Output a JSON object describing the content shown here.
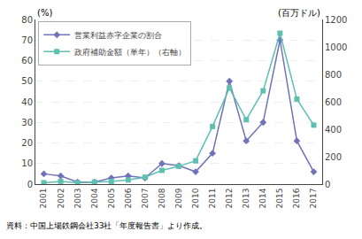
{
  "chart_data": {
    "type": "line",
    "ylabel": "(%)",
    "y2label": "(百万ドル)",
    "annotations": [
      "資料：中国上場鉄鋼会社33社「年度報告書」より作成。"
    ],
    "x": [
      2001,
      2002,
      2003,
      2004,
      2005,
      2006,
      2007,
      2008,
      2009,
      2010,
      2011,
      2012,
      2013,
      2014,
      2015,
      2016,
      2017
    ],
    "series": [
      {
        "name": "営業利益赤字企業の割合",
        "color": "#7272b8",
        "marker": "diamond",
        "values": [
          5,
          4,
          1,
          1,
          3,
          4,
          3,
          10,
          9,
          6,
          15,
          50,
          21,
          30,
          70,
          21,
          6
        ]
      },
      {
        "name": "政府補助金額（単年）（右軸）",
        "color": "#5fbfb0",
        "marker": "square",
        "axis": "y2",
        "values": [
          10,
          20,
          10,
          15,
          20,
          30,
          50,
          100,
          130,
          170,
          420,
          700,
          470,
          680,
          1100,
          620,
          430
        ]
      }
    ],
    "xlim": [
      2000.5,
      2017.5
    ],
    "xticks": [
      2001,
      2002,
      2003,
      2004,
      2005,
      2006,
      2007,
      2008,
      2009,
      2010,
      2011,
      2012,
      2013,
      2014,
      2015,
      2016,
      2017
    ],
    "ylim": [
      0,
      80
    ],
    "yticks": [
      0,
      10,
      20,
      30,
      40,
      50,
      60,
      70,
      80
    ],
    "y2lim": [
      0,
      1200
    ],
    "y2ticks": [
      0,
      200,
      400,
      600,
      800,
      1000,
      1200
    ],
    "grid": true,
    "legend": "upper left"
  }
}
